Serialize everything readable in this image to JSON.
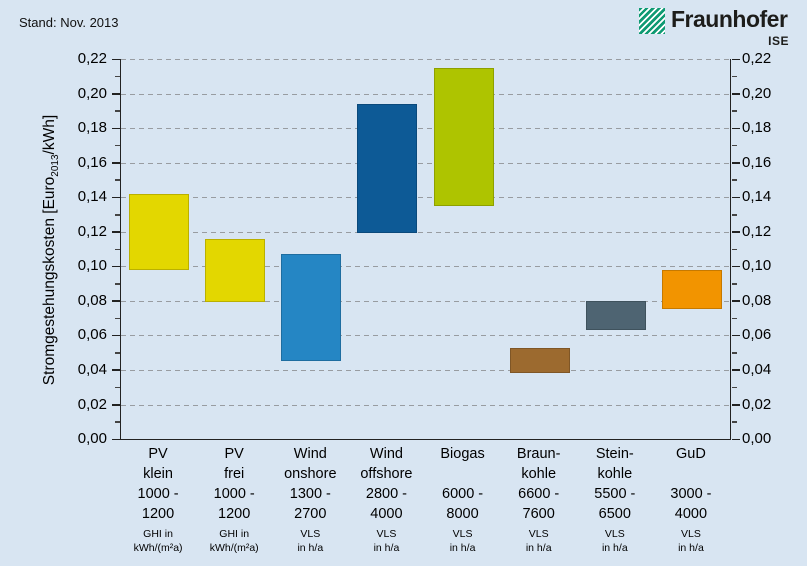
{
  "page": {
    "background_color": "#d8e5f2",
    "stand_label": "Stand: Nov. 2013"
  },
  "logo": {
    "brand": "Fraunhofer",
    "institute": "ISE",
    "green_color": "#0f9a73"
  },
  "chart_data": {
    "type": "bar",
    "subtype": "floating-range-columns",
    "title": "",
    "ylabel_pre": "Stromgestehungskosten [Euro",
    "ylabel_sub": "2013",
    "ylabel_post": "/kWh]",
    "ylim": [
      0,
      0.22
    ],
    "ytick_step": 0.02,
    "ytick_minor_step": 0.01,
    "decimal_separator": ",",
    "grid": "horizontal-dashed",
    "gridline_color": "#989ca1",
    "legend": "none",
    "ytick_labels": [
      "0,00",
      "0,02",
      "0,04",
      "0,06",
      "0,08",
      "0,10",
      "0,12",
      "0,14",
      "0,16",
      "0,18",
      "0,20",
      "0,22"
    ],
    "categories": [
      {
        "slug": "pv-klein",
        "name_lines": [
          "PV",
          "klein"
        ],
        "range_lines": [
          "1000 -",
          "1200"
        ],
        "unit_lines": [
          "GHI in",
          "kWh/(m²a)"
        ],
        "low": 0.098,
        "high": 0.142,
        "color": "#e3d700"
      },
      {
        "slug": "pv-frei",
        "name_lines": [
          "PV",
          "frei"
        ],
        "range_lines": [
          "1000 -",
          "1200"
        ],
        "unit_lines": [
          "GHI in",
          "kWh/(m²a)"
        ],
        "low": 0.079,
        "high": 0.116,
        "color": "#e3d700"
      },
      {
        "slug": "wind-onshore",
        "name_lines": [
          "Wind",
          "onshore"
        ],
        "range_lines": [
          "1300 -",
          "2700"
        ],
        "unit_lines": [
          "VLS",
          "in h/a"
        ],
        "low": 0.045,
        "high": 0.107,
        "color": "#2586c4"
      },
      {
        "slug": "wind-offshore",
        "name_lines": [
          "Wind",
          "offshore"
        ],
        "range_lines": [
          "2800 -",
          "4000"
        ],
        "unit_lines": [
          "VLS",
          "in h/a"
        ],
        "low": 0.119,
        "high": 0.194,
        "color": "#0d5a96"
      },
      {
        "slug": "biogas",
        "name_lines": [
          "Biogas",
          ""
        ],
        "range_lines": [
          "6000 -",
          "8000"
        ],
        "unit_lines": [
          "VLS",
          "in h/a"
        ],
        "low": 0.135,
        "high": 0.215,
        "color": "#aec400"
      },
      {
        "slug": "braunkohle",
        "name_lines": [
          "Braun-",
          "kohle"
        ],
        "range_lines": [
          "6600 -",
          "7600"
        ],
        "unit_lines": [
          "VLS",
          "in h/a"
        ],
        "low": 0.038,
        "high": 0.053,
        "color": "#9c6a2f"
      },
      {
        "slug": "steinkohle",
        "name_lines": [
          "Stein-",
          "kohle"
        ],
        "range_lines": [
          "5500 -",
          "6500"
        ],
        "unit_lines": [
          "VLS",
          "in h/a"
        ],
        "low": 0.063,
        "high": 0.08,
        "color": "#4e6472"
      },
      {
        "slug": "gud",
        "name_lines": [
          "GuD",
          ""
        ],
        "range_lines": [
          "3000 -",
          "4000"
        ],
        "unit_lines": [
          "VLS",
          "in h/a"
        ],
        "low": 0.075,
        "high": 0.098,
        "color": "#f29400"
      }
    ]
  }
}
